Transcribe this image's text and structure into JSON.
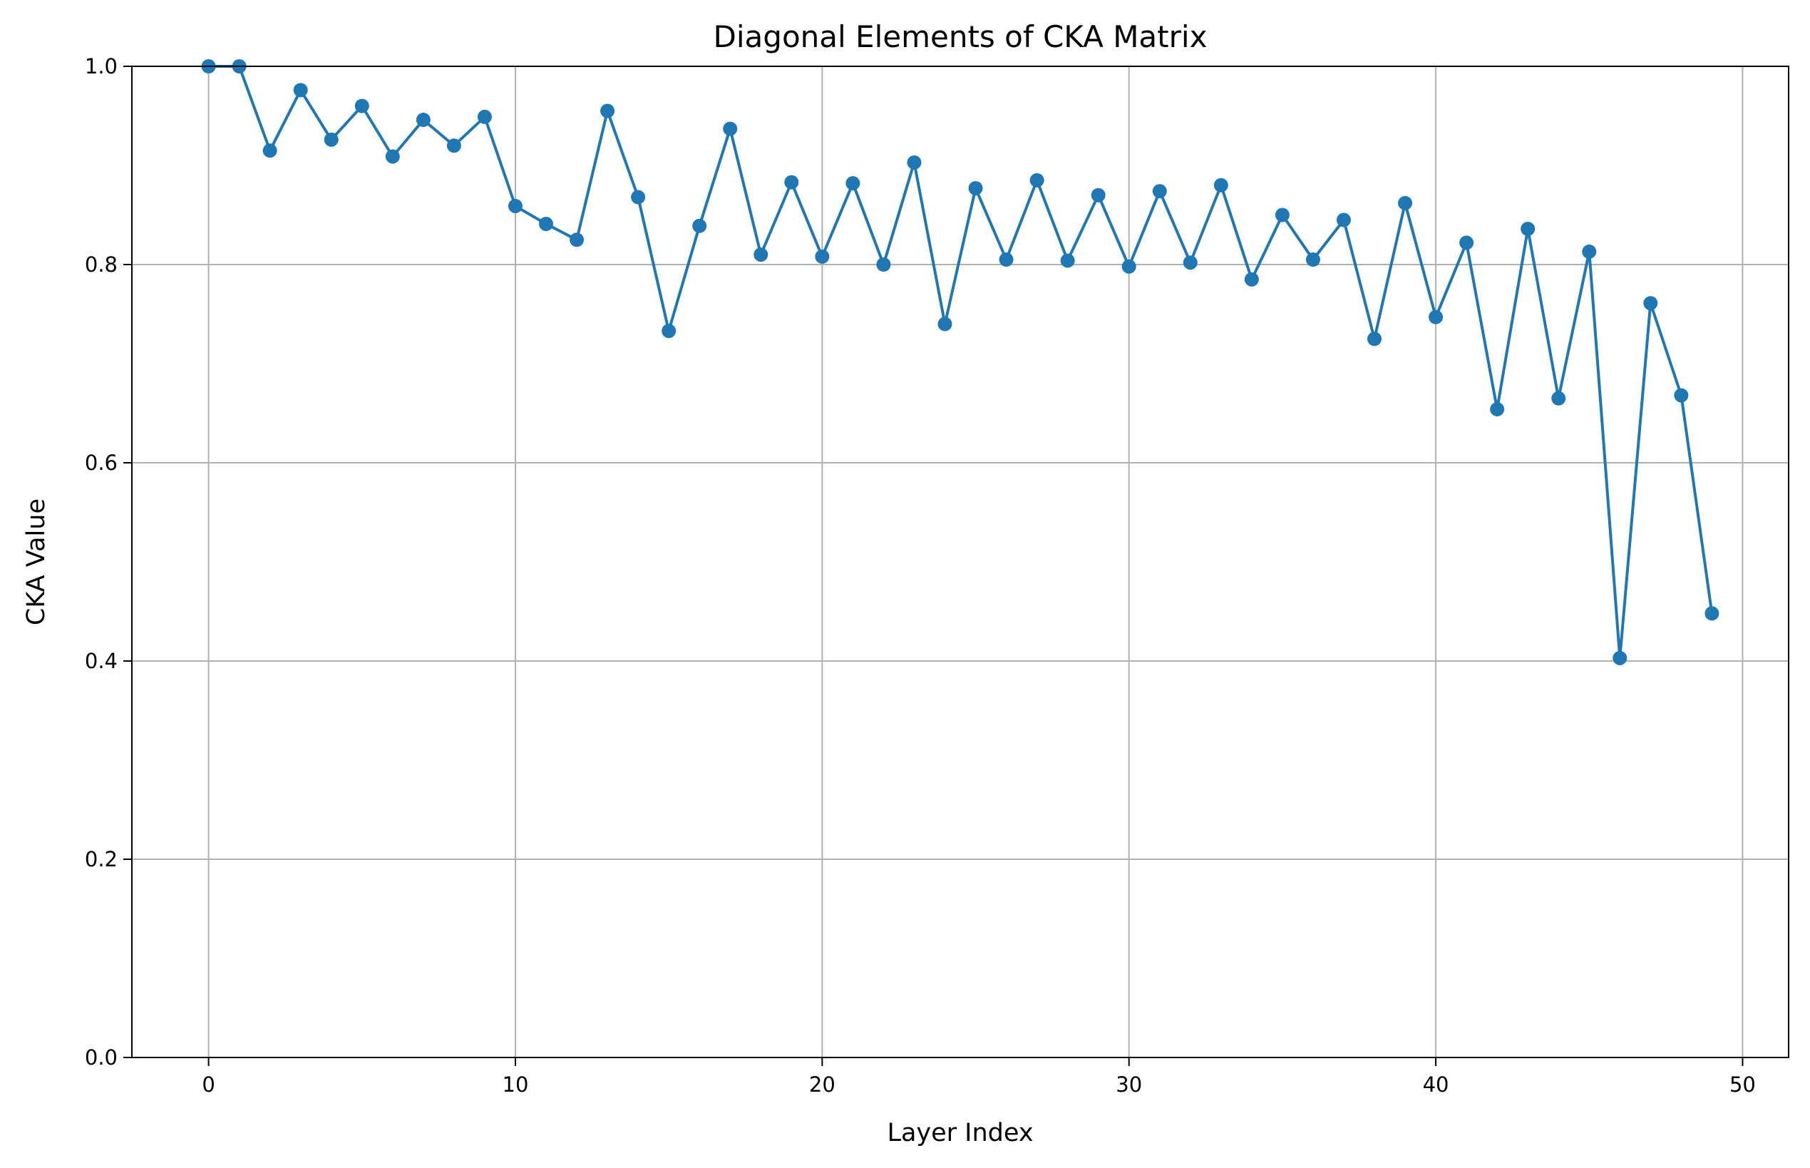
{
  "chart_data": {
    "type": "line",
    "title": "Diagonal Elements of CKA Matrix",
    "xlabel": "Layer Index",
    "ylabel": "CKA Value",
    "xlim": [
      -2.5,
      51.5
    ],
    "ylim": [
      0.0,
      1.0
    ],
    "x_ticks": [
      0,
      10,
      20,
      30,
      40,
      50
    ],
    "x_tick_labels": [
      "0",
      "10",
      "20",
      "30",
      "40",
      "50"
    ],
    "y_ticks": [
      0.0,
      0.2,
      0.4,
      0.6,
      0.8,
      1.0
    ],
    "y_tick_labels": [
      "0.0",
      "0.2",
      "0.4",
      "0.6",
      "0.8",
      "1.0"
    ],
    "grid": true,
    "legend": "none",
    "series_color": "#1f77b4",
    "grid_color": "#b0b0b0",
    "series": [
      {
        "marker": "circle",
        "x": [
          0,
          1,
          2,
          3,
          4,
          5,
          6,
          7,
          8,
          9,
          10,
          11,
          12,
          13,
          14,
          15,
          16,
          17,
          18,
          19,
          20,
          21,
          22,
          23,
          24,
          25,
          26,
          27,
          28,
          29,
          30,
          31,
          32,
          33,
          34,
          35,
          36,
          37,
          38,
          39,
          40,
          41,
          42,
          43,
          44,
          45,
          46,
          47,
          48,
          49
        ],
        "values": [
          1.0,
          1.0,
          0.915,
          0.976,
          0.926,
          0.96,
          0.909,
          0.946,
          0.92,
          0.949,
          0.859,
          0.841,
          0.825,
          0.955,
          0.868,
          0.733,
          0.839,
          0.937,
          0.81,
          0.883,
          0.808,
          0.882,
          0.8,
          0.903,
          0.74,
          0.877,
          0.805,
          0.885,
          0.804,
          0.87,
          0.798,
          0.874,
          0.802,
          0.88,
          0.785,
          0.85,
          0.805,
          0.845,
          0.725,
          0.862,
          0.747,
          0.822,
          0.654,
          0.836,
          0.665,
          0.813,
          0.403,
          0.761,
          0.668,
          0.448
        ]
      }
    ]
  }
}
